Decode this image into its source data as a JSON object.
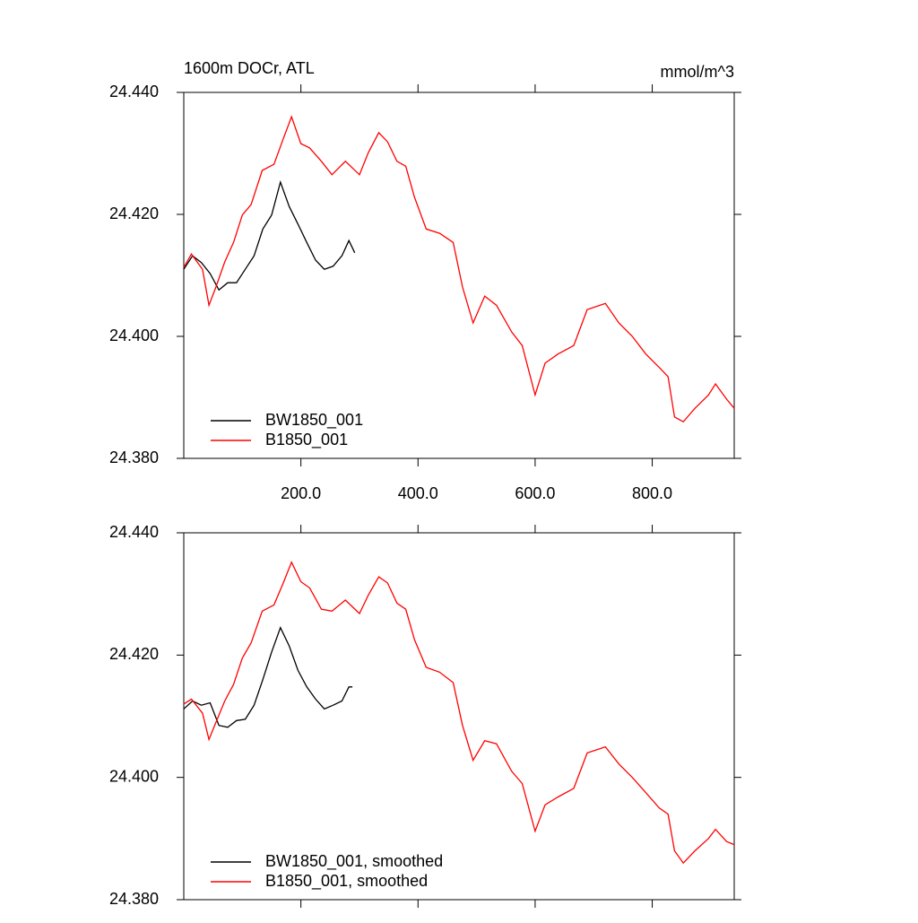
{
  "chart_data": [
    {
      "type": "line",
      "title": "1600m DOCr, ATL",
      "units": "mmol/m^3",
      "xlim": [
        0,
        940
      ],
      "ylim": [
        24.38,
        24.44
      ],
      "xticks": [
        {
          "value": 200,
          "label": "200.0"
        },
        {
          "value": 400,
          "label": "400.0"
        },
        {
          "value": 600,
          "label": "600.0"
        },
        {
          "value": 800,
          "label": "800.0"
        }
      ],
      "xtick_labels": true,
      "yticks": [
        {
          "value": 24.38,
          "label": "24.380"
        },
        {
          "value": 24.4,
          "label": "24.400"
        },
        {
          "value": 24.42,
          "label": "24.420"
        },
        {
          "value": 24.44,
          "label": "24.440"
        }
      ],
      "legend": "lower left",
      "series": [
        {
          "name": "BW1850_001",
          "color": "#000000",
          "x": [
            0,
            15,
            30,
            45,
            60,
            75,
            90,
            105,
            120,
            135,
            150,
            165,
            180,
            195,
            210,
            225,
            240,
            255,
            270,
            282,
            292
          ],
          "values": [
            24.411,
            24.4132,
            24.4121,
            24.4103,
            24.4076,
            24.4088,
            24.4088,
            24.411,
            24.4132,
            24.4176,
            24.4199,
            24.4253,
            24.4213,
            24.4184,
            24.4154,
            24.4125,
            24.411,
            24.4115,
            24.4132,
            24.4157,
            24.4137
          ]
        },
        {
          "name": "B1850_001",
          "color": "#ff0000",
          "x": [
            0,
            13,
            32,
            43,
            55,
            70,
            85,
            100,
            115,
            134,
            154,
            170,
            184,
            200,
            215,
            235,
            253,
            276,
            300,
            315,
            333,
            348,
            364,
            379,
            394,
            414,
            437,
            460,
            476,
            494,
            514,
            534,
            560,
            578,
            600,
            617,
            639,
            666,
            689,
            720,
            743,
            766,
            789,
            812,
            827,
            838,
            853,
            873,
            896,
            908,
            927,
            940
          ],
          "values": [
            24.4113,
            24.4135,
            24.411,
            24.4051,
            24.4081,
            24.4122,
            24.4154,
            24.4199,
            24.4216,
            24.4272,
            24.4282,
            24.4324,
            24.436,
            24.4316,
            24.4309,
            24.4287,
            24.4265,
            24.4287,
            24.4265,
            24.4301,
            24.4334,
            24.4319,
            24.4287,
            24.4279,
            24.4228,
            24.4176,
            24.4169,
            24.4154,
            24.4081,
            24.4022,
            24.4066,
            24.4051,
            24.4007,
            24.3985,
            24.3904,
            24.3956,
            24.3971,
            24.3985,
            24.4044,
            24.4054,
            24.4022,
            24.4,
            24.3971,
            24.3949,
            24.3934,
            24.3868,
            24.386,
            24.3882,
            24.3904,
            24.3922,
            24.3897,
            24.3882
          ]
        }
      ]
    },
    {
      "type": "line",
      "xlim": [
        0,
        940
      ],
      "ylim": [
        24.38,
        24.44
      ],
      "xticks": [
        200,
        400,
        600,
        800
      ],
      "xtick_labels": false,
      "yticks": [
        {
          "value": 24.38,
          "label": "24.380"
        },
        {
          "value": 24.4,
          "label": "24.400"
        },
        {
          "value": 24.42,
          "label": "24.420"
        },
        {
          "value": 24.44,
          "label": "24.440"
        }
      ],
      "legend": "lower left",
      "series": [
        {
          "name": "BW1850_001, smoothed",
          "color": "#000000",
          "x": [
            0,
            15,
            30,
            45,
            60,
            75,
            90,
            105,
            120,
            135,
            150,
            165,
            180,
            195,
            210,
            225,
            240,
            255,
            270,
            282,
            288
          ],
          "values": [
            24.4112,
            24.4125,
            24.4118,
            24.4122,
            24.4085,
            24.4082,
            24.4093,
            24.4095,
            24.4118,
            24.416,
            24.4205,
            24.4245,
            24.4215,
            24.4175,
            24.4148,
            24.4128,
            24.4112,
            24.4118,
            24.4125,
            24.4148,
            24.4148
          ]
        },
        {
          "name": "B1850_001, smoothed",
          "color": "#ff0000",
          "x": [
            0,
            13,
            32,
            43,
            55,
            70,
            85,
            100,
            115,
            134,
            154,
            170,
            184,
            200,
            215,
            235,
            253,
            276,
            300,
            315,
            333,
            348,
            364,
            379,
            394,
            414,
            437,
            460,
            476,
            494,
            514,
            534,
            560,
            578,
            600,
            617,
            639,
            666,
            689,
            720,
            743,
            766,
            789,
            812,
            827,
            838,
            853,
            873,
            896,
            908,
            927,
            940
          ],
          "values": [
            24.412,
            24.4128,
            24.4105,
            24.4062,
            24.409,
            24.4125,
            24.4152,
            24.4195,
            24.422,
            24.4272,
            24.4282,
            24.4318,
            24.4352,
            24.432,
            24.431,
            24.4275,
            24.4272,
            24.429,
            24.4268,
            24.4298,
            24.4328,
            24.4318,
            24.4285,
            24.4275,
            24.4225,
            24.418,
            24.4172,
            24.4155,
            24.4085,
            24.4028,
            24.406,
            24.4055,
            24.401,
            24.399,
            24.3912,
            24.3955,
            24.3968,
            24.3982,
            24.404,
            24.405,
            24.4022,
            24.4,
            24.3975,
            24.395,
            24.394,
            24.388,
            24.386,
            24.388,
            24.39,
            24.3915,
            24.3895,
            24.389
          ]
        }
      ]
    }
  ]
}
